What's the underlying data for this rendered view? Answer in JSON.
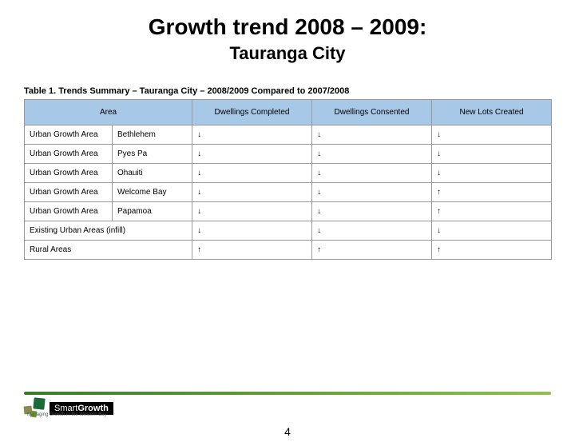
{
  "title": {
    "main": "Growth trend 2008 – 2009:",
    "sub": "Tauranga City"
  },
  "table": {
    "caption": "Table 1.  Trends Summary – Tauranga City – 2008/2009 Compared to 2007/2008",
    "header_bg": "#a8c8e8",
    "border_color": "#999999",
    "columns": [
      "Area",
      "Dwellings Completed",
      "Dwellings Consented",
      "New Lots Created"
    ],
    "arrow_colors": {
      "down": "#d00000",
      "up": "#0000d0"
    },
    "rows": [
      {
        "area1": "Urban Growth Area",
        "area2": "Bethlehem",
        "d1": "down",
        "d2": "down",
        "d3": "down"
      },
      {
        "area1": "Urban Growth Area",
        "area2": "Pyes Pa",
        "d1": "down",
        "d2": "down",
        "d3": "down"
      },
      {
        "area1": "Urban Growth Area",
        "area2": "Ohauiti",
        "d1": "down",
        "d2": "down",
        "d3": "down"
      },
      {
        "area1": "Urban Growth Area",
        "area2": "Welcome Bay",
        "d1": "down",
        "d2": "down",
        "d3": "up"
      },
      {
        "area1": "Urban Growth Area",
        "area2": "Papamoa",
        "d1": "down",
        "d2": "down",
        "d3": "up"
      },
      {
        "area1": "Existing Urban Areas (infill)",
        "area2": "",
        "d1": "down",
        "d2": "down",
        "d3": "down"
      },
      {
        "area1": "Rural Areas",
        "area2": "",
        "d1": "up",
        "d2": "up",
        "d3": "up"
      }
    ]
  },
  "footer": {
    "logo_brand_light": "Smart",
    "logo_brand_bold": "Growth",
    "logo_tagline": "Managing Growth in the Western Bay",
    "page_number": "4"
  }
}
